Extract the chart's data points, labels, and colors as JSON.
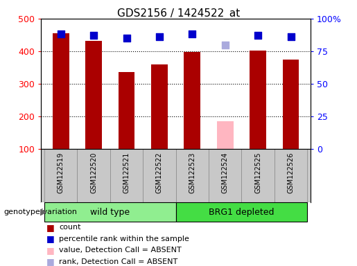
{
  "title": "GDS2156 / 1424522_at",
  "samples": [
    "GSM122519",
    "GSM122520",
    "GSM122521",
    "GSM122522",
    "GSM122523",
    "GSM122524",
    "GSM122525",
    "GSM122526"
  ],
  "counts": [
    455,
    432,
    335,
    360,
    397,
    null,
    403,
    375
  ],
  "absent_count": [
    null,
    null,
    null,
    null,
    null,
    185,
    null,
    null
  ],
  "percentile_ranks": [
    88,
    87,
    85,
    86,
    88,
    null,
    87,
    86
  ],
  "absent_rank": [
    null,
    null,
    null,
    null,
    null,
    80,
    null,
    null
  ],
  "wild_type_indices": [
    0,
    1,
    2,
    3
  ],
  "brg1_indices": [
    4,
    5,
    6,
    7
  ],
  "bar_color_present": "#AA0000",
  "bar_color_absent": "#FFB6C1",
  "dot_color_present": "#0000CC",
  "dot_color_absent": "#AAAADD",
  "group_color_wt": "#90EE90",
  "group_color_brg1": "#44DD44",
  "ylim_left": [
    100,
    500
  ],
  "ylim_right": [
    0,
    100
  ],
  "yticks_left": [
    100,
    200,
    300,
    400,
    500
  ],
  "ytick_labels_left": [
    "100",
    "200",
    "300",
    "400",
    "500"
  ],
  "yticks_right": [
    0,
    25,
    50,
    75,
    100
  ],
  "ytick_labels_right": [
    "0",
    "25",
    "50",
    "75",
    "100%"
  ],
  "grid_values": [
    200,
    300,
    400
  ],
  "legend_items": [
    {
      "label": "count",
      "color": "#AA0000"
    },
    {
      "label": "percentile rank within the sample",
      "color": "#0000CC"
    },
    {
      "label": "value, Detection Call = ABSENT",
      "color": "#FFB6C1"
    },
    {
      "label": "rank, Detection Call = ABSENT",
      "color": "#AAAADD"
    }
  ],
  "bar_width": 0.5,
  "dot_size": 50,
  "tick_area_color": "#C8C8C8",
  "separator_color": "#AAAAAA"
}
